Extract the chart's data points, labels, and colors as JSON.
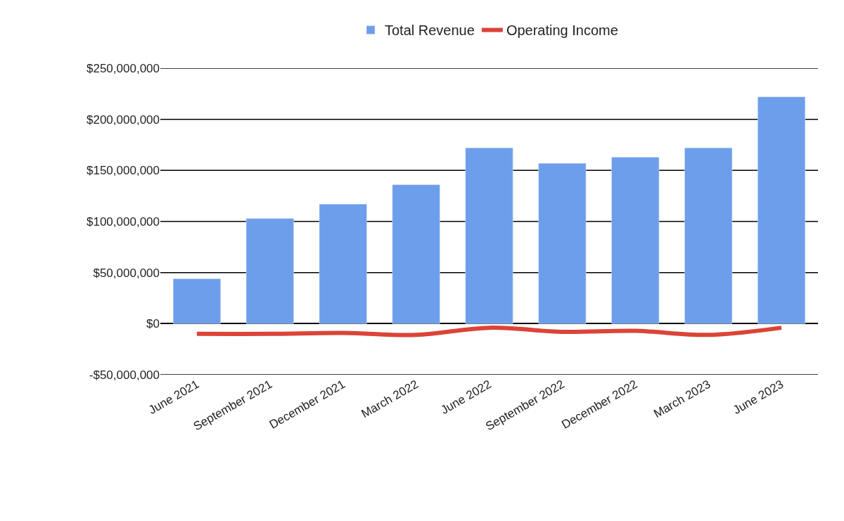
{
  "chart_data": {
    "type": "bar",
    "categories": [
      "June 2021",
      "September 2021",
      "December 2021",
      "March 2022",
      "June 2022",
      "September 2022",
      "December 2022",
      "March 2023",
      "June 2023"
    ],
    "series": [
      {
        "name": "Total Revenue",
        "color": "#6d9eeb",
        "values": [
          44000000,
          103000000,
          117000000,
          136000000,
          172000000,
          157000000,
          163000000,
          172000000,
          222000000
        ]
      },
      {
        "name": "Operating Income",
        "type": "line",
        "color": "#db4437",
        "values": [
          -10000000,
          -10000000,
          -9000000,
          -11000000,
          -4000000,
          -8000000,
          -7000000,
          -11000000,
          -4000000
        ]
      }
    ],
    "ylim": [
      -50000000,
      250000000
    ],
    "yticks": [
      {
        "value": -50000000,
        "label": "-$50,000,000"
      },
      {
        "value": 0,
        "label": "$0"
      },
      {
        "value": 50000000,
        "label": "$50,000,000"
      },
      {
        "value": 100000000,
        "label": "$100,000,000"
      },
      {
        "value": 150000000,
        "label": "$150,000,000"
      },
      {
        "value": 200000000,
        "label": "$200,000,000"
      },
      {
        "value": 250000000,
        "label": "$250,000,000"
      }
    ],
    "grid": "y",
    "legend": "top",
    "marker": "none"
  }
}
